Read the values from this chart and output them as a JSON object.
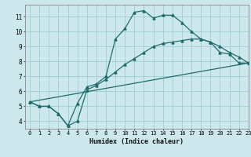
{
  "xlabel": "Humidex (Indice chaleur)",
  "bg_color": "#cce8ec",
  "grid_color": "#9fcdd3",
  "line_color": "#1f6b6b",
  "line1_x": [
    0,
    1,
    2,
    3,
    4,
    5,
    6,
    7,
    8,
    9,
    10,
    11,
    12,
    13,
    14,
    15,
    16,
    17,
    18,
    19,
    20,
    21,
    22,
    23
  ],
  "line1_y": [
    5.3,
    5.0,
    5.0,
    4.5,
    3.7,
    5.2,
    6.3,
    6.5,
    7.0,
    9.5,
    10.2,
    11.3,
    11.4,
    10.9,
    11.1,
    11.1,
    10.6,
    10.0,
    9.5,
    9.3,
    8.6,
    8.5,
    7.9,
    7.9
  ],
  "line2_x": [
    0,
    1,
    2,
    3,
    4,
    5,
    6,
    7,
    8,
    9,
    10,
    11,
    12,
    13,
    14,
    15,
    16,
    17,
    18,
    19,
    20,
    21,
    22,
    23
  ],
  "line2_y": [
    5.3,
    5.0,
    5.0,
    4.5,
    3.7,
    4.0,
    6.1,
    6.4,
    6.8,
    7.3,
    7.8,
    8.2,
    8.6,
    9.0,
    9.2,
    9.3,
    9.4,
    9.5,
    9.5,
    9.3,
    9.0,
    8.6,
    8.3,
    7.9
  ],
  "line3_x": [
    0,
    23
  ],
  "line3_y": [
    5.3,
    7.9
  ],
  "ylim": [
    3.5,
    11.8
  ],
  "xlim": [
    -0.5,
    23
  ],
  "yticks": [
    4,
    5,
    6,
    7,
    8,
    9,
    10,
    11
  ],
  "xticks": [
    0,
    1,
    2,
    3,
    4,
    5,
    6,
    7,
    8,
    9,
    10,
    11,
    12,
    13,
    14,
    15,
    16,
    17,
    18,
    19,
    20,
    21,
    22,
    23
  ]
}
